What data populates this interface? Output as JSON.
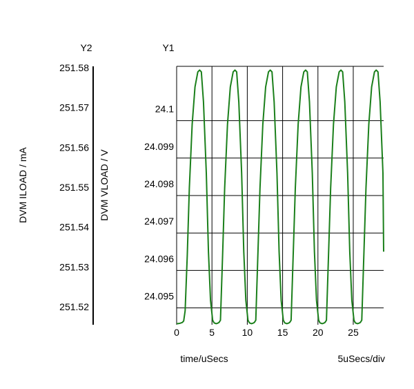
{
  "chart_data": {
    "type": "line",
    "x_axis": {
      "label": "time/uSecs",
      "division_label": "5uSecs/div",
      "range": [
        0,
        29.3
      ],
      "ticks": [
        0,
        5,
        10,
        15,
        20,
        25
      ],
      "tick_labels": [
        "0",
        "5",
        "10",
        "15",
        "20",
        "25"
      ]
    },
    "y1_axis": {
      "name": "Y1",
      "label": "DVM VLOAD / V",
      "range": [
        24.09455,
        24.10145
      ],
      "ticks": [
        24.095,
        24.096,
        24.097,
        24.098,
        24.099,
        24.1
      ],
      "tick_labels": [
        "24.095",
        "24.096",
        "24.097",
        "24.098",
        "24.099",
        "24.1"
      ]
    },
    "y2_axis": {
      "name": "Y2",
      "label": "DVM ILOAD / mA",
      "ticks": [
        251.52,
        251.53,
        251.54,
        251.55,
        251.56,
        251.57,
        251.58
      ],
      "tick_labels": [
        "251.52",
        "251.53",
        "251.54",
        "251.55",
        "251.56",
        "251.57",
        "251.58"
      ]
    },
    "grid": true,
    "series": [
      {
        "axis": "y1",
        "color": "#1a7f1a",
        "x": [
          0,
          0.2,
          0.5,
          0.8,
          1.0,
          1.2,
          1.5,
          1.8,
          2.2,
          2.6,
          3.0,
          3.25,
          3.5,
          3.8,
          4.2,
          4.5,
          4.8,
          5.1,
          5.3,
          5.6,
          5.8,
          6.0,
          6.2,
          6.5,
          6.8,
          7.2,
          7.6,
          8.0,
          8.25,
          8.5,
          8.8,
          9.2,
          9.5,
          9.8,
          10.1,
          10.3,
          10.6,
          10.8,
          11.0,
          11.2,
          11.5,
          11.8,
          12.2,
          12.6,
          13.0,
          13.25,
          13.5,
          13.8,
          14.2,
          14.5,
          14.8,
          15.1,
          15.3,
          15.6,
          15.8,
          16.0,
          16.2,
          16.5,
          16.8,
          17.2,
          17.6,
          18.0,
          18.25,
          18.5,
          18.8,
          19.2,
          19.5,
          19.8,
          20.1,
          20.3,
          20.6,
          20.8,
          21.0,
          21.2,
          21.5,
          21.8,
          22.2,
          22.6,
          23.0,
          23.25,
          23.5,
          23.8,
          24.2,
          24.5,
          24.8,
          25.1,
          25.3,
          25.6,
          25.8,
          26.0,
          26.2,
          26.5,
          26.8,
          27.2,
          27.6,
          28.0,
          28.25,
          28.5,
          28.8,
          29.2,
          29.3
        ],
        "y": [
          24.09458,
          24.09458,
          24.09459,
          24.09461,
          24.09465,
          24.09492,
          24.0964,
          24.0982,
          24.0999,
          24.1009,
          24.1013,
          24.10135,
          24.1013,
          24.1005,
          24.0986,
          24.0965,
          24.0952,
          24.09467,
          24.0946,
          24.09458,
          24.09459,
          24.09461,
          24.09467,
          24.0964,
          24.0982,
          24.0999,
          24.1009,
          24.1013,
          24.10135,
          24.1013,
          24.1005,
          24.0986,
          24.0965,
          24.0952,
          24.09467,
          24.0946,
          24.09458,
          24.09459,
          24.09461,
          24.09467,
          24.0964,
          24.0982,
          24.0999,
          24.1009,
          24.1013,
          24.10135,
          24.1013,
          24.1005,
          24.0986,
          24.0965,
          24.0952,
          24.09467,
          24.0946,
          24.09458,
          24.09459,
          24.09461,
          24.09467,
          24.0964,
          24.0982,
          24.0999,
          24.1009,
          24.1013,
          24.10135,
          24.1013,
          24.1005,
          24.0986,
          24.0965,
          24.0952,
          24.09467,
          24.0946,
          24.09458,
          24.09459,
          24.09461,
          24.09467,
          24.0964,
          24.0982,
          24.0999,
          24.1009,
          24.1013,
          24.10135,
          24.1013,
          24.1005,
          24.0986,
          24.0965,
          24.0952,
          24.09467,
          24.0946,
          24.09458,
          24.09459,
          24.09461,
          24.09467,
          24.0964,
          24.0982,
          24.0999,
          24.1009,
          24.1013,
          24.10135,
          24.1013,
          24.1005,
          24.0986,
          24.0965
        ]
      }
    ]
  }
}
